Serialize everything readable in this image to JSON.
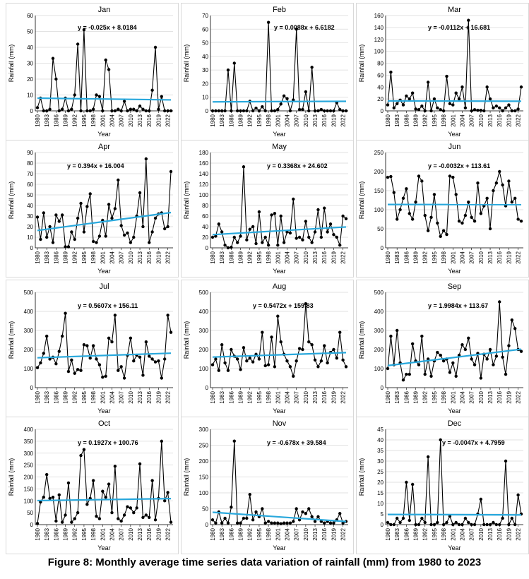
{
  "caption": "Figure 8: Monthly average time series data variation of rainfall (mm) from 1980 to 2023",
  "colors": {
    "series": "#000000",
    "trend": "#29a8dc",
    "axis": "#000000",
    "grid": "#d9d9d9"
  },
  "chart_data": [
    {
      "type": "line",
      "title": "Jan",
      "xlabel": "Year",
      "ylabel": "Rainfall (mm)",
      "ylim": [
        0,
        60
      ],
      "yticks": [
        0,
        10,
        20,
        30,
        40,
        50,
        60
      ],
      "grid": true,
      "equation": "y = -0.025x + 8.0184",
      "trend": {
        "slope": -0.025,
        "intercept": 8.0184
      },
      "x_ticks": [
        "1980",
        "1983",
        "1986",
        "1989",
        "1992",
        "1995",
        "1998",
        "2001",
        "2004",
        "2007",
        "2010",
        "2013",
        "2016",
        "2019",
        "2022"
      ],
      "values": [
        2,
        8,
        0,
        0,
        1,
        33,
        20,
        0,
        1,
        8,
        0,
        1,
        10,
        42,
        0,
        51,
        0,
        0,
        1,
        10,
        9,
        0,
        32,
        26,
        0,
        0,
        1,
        0,
        6,
        0,
        1,
        1,
        0,
        3,
        1,
        0,
        0,
        13,
        40,
        1,
        9,
        0,
        0,
        0
      ]
    },
    {
      "type": "line",
      "title": "Feb",
      "xlabel": "Year",
      "ylabel": "Rainfall (mm)",
      "ylim": [
        0,
        70
      ],
      "yticks": [
        0,
        10,
        20,
        30,
        40,
        50,
        60,
        70
      ],
      "grid": true,
      "equation": "y = 0.0088x + 6.6182",
      "trend": {
        "slope": 0.0088,
        "intercept": 6.6182
      },
      "x_ticks": [
        "1980",
        "1983",
        "1986",
        "1989",
        "1992",
        "1995",
        "1998",
        "2001",
        "2004",
        "2007",
        "2010",
        "2013",
        "2016",
        "2019",
        "2022"
      ],
      "values": [
        0,
        0,
        0,
        0,
        0,
        30,
        0,
        35,
        0,
        0,
        0,
        0,
        7,
        0,
        2,
        0,
        3,
        0,
        65,
        0,
        0,
        1,
        5,
        11,
        9,
        0,
        8,
        60,
        1,
        1,
        14,
        0,
        32,
        0,
        0,
        1,
        0,
        0,
        0,
        0,
        6,
        1,
        0,
        0
      ]
    },
    {
      "type": "line",
      "title": "Mar",
      "xlabel": "Year",
      "ylabel": "Rainfall (mm)",
      "ylim": [
        0,
        160
      ],
      "yticks": [
        0,
        20,
        40,
        60,
        80,
        100,
        120,
        140,
        160
      ],
      "grid": true,
      "equation": "y = -0.0112x + 16.681",
      "trend": {
        "slope": -0.0112,
        "intercept": 16.681
      },
      "x_ticks": [
        "1980",
        "1983",
        "1986",
        "1989",
        "1992",
        "1995",
        "1998",
        "2001",
        "2004",
        "2007",
        "2010",
        "2013",
        "2016",
        "2019",
        "2022"
      ],
      "values": [
        10,
        65,
        5,
        12,
        18,
        10,
        25,
        20,
        30,
        3,
        2,
        8,
        0,
        48,
        0,
        20,
        5,
        2,
        0,
        58,
        12,
        10,
        30,
        20,
        40,
        5,
        152,
        0,
        2,
        1,
        1,
        0,
        40,
        20,
        5,
        8,
        5,
        0,
        5,
        10,
        0,
        0,
        3,
        40
      ]
    },
    {
      "type": "line",
      "title": "Apr",
      "xlabel": "Year",
      "ylabel": "Rainfall (mm)",
      "ylim": [
        0,
        90
      ],
      "yticks": [
        0,
        10,
        20,
        30,
        40,
        50,
        60,
        70,
        80,
        90
      ],
      "grid": true,
      "equation": "y = 0.394x + 16.004",
      "trend": {
        "slope": 0.394,
        "intercept": 16.004
      },
      "x_ticks": [
        "1980",
        "1983",
        "1986",
        "1989",
        "1992",
        "1995",
        "1998",
        "2001",
        "2004",
        "2007",
        "2010",
        "2013",
        "2016",
        "2019",
        "2022"
      ],
      "values": [
        29,
        8,
        33,
        10,
        20,
        5,
        31,
        25,
        31,
        1,
        1,
        15,
        8,
        28,
        42,
        15,
        39,
        51,
        6,
        5,
        11,
        26,
        11,
        41,
        28,
        37,
        64,
        21,
        12,
        14,
        5,
        10,
        30,
        52,
        20,
        84,
        5,
        15,
        28,
        32,
        33,
        18,
        20,
        72
      ]
    },
    {
      "type": "line",
      "title": "May",
      "xlabel": "Year",
      "ylabel": "Rainfall (mm)",
      "ylim": [
        0,
        180
      ],
      "yticks": [
        0,
        20,
        40,
        60,
        80,
        100,
        120,
        140,
        160,
        180
      ],
      "grid": true,
      "equation": "y = 0.3368x + 24.602",
      "trend": {
        "slope": 0.3368,
        "intercept": 24.602
      },
      "x_ticks": [
        "1980",
        "1983",
        "1986",
        "1989",
        "1992",
        "1995",
        "1998",
        "2001",
        "2004",
        "2007",
        "2010",
        "2013",
        "2016",
        "2019",
        "2022"
      ],
      "values": [
        20,
        22,
        45,
        30,
        5,
        0,
        1,
        20,
        10,
        22,
        153,
        15,
        35,
        40,
        8,
        68,
        10,
        20,
        5,
        62,
        65,
        5,
        60,
        10,
        30,
        28,
        92,
        18,
        20,
        15,
        50,
        20,
        10,
        30,
        72,
        20,
        75,
        30,
        45,
        25,
        20,
        5,
        60,
        55
      ]
    },
    {
      "type": "line",
      "title": "Jun",
      "xlabel": "Year",
      "ylabel": "Rainfall (mm)",
      "ylim": [
        0,
        250
      ],
      "yticks": [
        0,
        50,
        100,
        150,
        200,
        250
      ],
      "grid": true,
      "equation": "y = -0.0032x + 113.61",
      "trend": {
        "slope": -0.0032,
        "intercept": 113.61
      },
      "x_ticks": [
        "1980",
        "1983",
        "1986",
        "1989",
        "1992",
        "1995",
        "1998",
        "2001",
        "2004",
        "2007",
        "2010",
        "2013",
        "2016",
        "2019",
        "2022"
      ],
      "values": [
        185,
        187,
        145,
        75,
        100,
        130,
        155,
        90,
        75,
        120,
        188,
        175,
        85,
        45,
        80,
        140,
        65,
        30,
        45,
        35,
        188,
        185,
        140,
        70,
        65,
        85,
        120,
        80,
        70,
        170,
        90,
        110,
        130,
        50,
        150,
        170,
        200,
        165,
        110,
        175,
        120,
        130,
        75,
        70
      ]
    },
    {
      "type": "line",
      "title": "Jul",
      "xlabel": "Year",
      "ylabel": "Rainfall (mm)",
      "ylim": [
        0,
        500
      ],
      "yticks": [
        0,
        100,
        200,
        300,
        400,
        500
      ],
      "grid": true,
      "equation": "y = 0.5607x + 156.11",
      "trend": {
        "slope": 0.5607,
        "intercept": 156.11
      },
      "x_ticks": [
        "1980",
        "1983",
        "1986",
        "1989",
        "1992",
        "1995",
        "1998",
        "2001",
        "2004",
        "2007",
        "2010",
        "2013",
        "2016",
        "2019",
        "2022"
      ],
      "values": [
        105,
        130,
        180,
        270,
        150,
        160,
        125,
        190,
        270,
        390,
        85,
        145,
        75,
        95,
        90,
        225,
        220,
        155,
        220,
        150,
        120,
        55,
        60,
        260,
        240,
        380,
        90,
        110,
        50,
        170,
        260,
        140,
        170,
        160,
        65,
        240,
        165,
        150,
        135,
        140,
        50,
        150,
        380,
        290
      ]
    },
    {
      "type": "line",
      "title": "Aug",
      "xlabel": "Year",
      "ylabel": "Rainfall (mm)",
      "ylim": [
        0,
        500
      ],
      "yticks": [
        0,
        100,
        200,
        300,
        400,
        500
      ],
      "grid": true,
      "equation": "y = 0.5472x + 159.83",
      "trend": {
        "slope": 0.5472,
        "intercept": 159.83
      },
      "x_ticks": [
        "1980",
        "1983",
        "1986",
        "1989",
        "1992",
        "1995",
        "1998",
        "2001",
        "2004",
        "2007",
        "2010",
        "2013",
        "2016",
        "2019",
        "2022"
      ],
      "values": [
        120,
        150,
        90,
        225,
        130,
        90,
        200,
        165,
        150,
        95,
        210,
        140,
        155,
        135,
        175,
        150,
        290,
        115,
        120,
        265,
        110,
        375,
        240,
        175,
        140,
        110,
        60,
        140,
        205,
        200,
        440,
        240,
        225,
        145,
        110,
        140,
        220,
        130,
        185,
        200,
        155,
        290,
        145,
        110
      ]
    },
    {
      "type": "line",
      "title": "Sep",
      "xlabel": "Year",
      "ylabel": "Rainfall (mm)",
      "ylim": [
        0,
        500
      ],
      "yticks": [
        0,
        100,
        200,
        300,
        400,
        500
      ],
      "grid": true,
      "equation": "y = 1.9984x + 113.67",
      "trend": {
        "slope": 1.9984,
        "intercept": 113.67
      },
      "x_ticks": [
        "1980",
        "1983",
        "1986",
        "1989",
        "1992",
        "1995",
        "1998",
        "2001",
        "2004",
        "2007",
        "2010",
        "2013",
        "2016",
        "2019",
        "2022"
      ],
      "values": [
        100,
        270,
        120,
        300,
        130,
        40,
        70,
        70,
        230,
        140,
        120,
        270,
        70,
        150,
        60,
        140,
        185,
        170,
        140,
        150,
        80,
        130,
        60,
        170,
        225,
        200,
        260,
        150,
        120,
        180,
        50,
        175,
        150,
        200,
        120,
        165,
        450,
        160,
        70,
        220,
        355,
        310,
        200,
        190
      ]
    },
    {
      "type": "line",
      "title": "Oct",
      "xlabel": "Year",
      "ylabel": "Rainfall (mm)",
      "ylim": [
        0,
        400
      ],
      "yticks": [
        0,
        50,
        100,
        150,
        200,
        250,
        300,
        350,
        400
      ],
      "grid": true,
      "equation": "y = 0.1927x + 100.76",
      "trend": {
        "slope": 0.1927,
        "intercept": 100.76
      },
      "x_ticks": [
        "1980",
        "1983",
        "1986",
        "1989",
        "1992",
        "1995",
        "1998",
        "2001",
        "2004",
        "2007",
        "2010",
        "2013",
        "2016",
        "2019",
        "2022"
      ],
      "values": [
        5,
        95,
        115,
        210,
        110,
        115,
        15,
        125,
        10,
        40,
        175,
        10,
        25,
        50,
        290,
        315,
        85,
        110,
        185,
        35,
        25,
        140,
        115,
        170,
        50,
        245,
        25,
        15,
        40,
        75,
        70,
        50,
        70,
        255,
        30,
        40,
        30,
        185,
        20,
        110,
        350,
        100,
        135,
        10
      ]
    },
    {
      "type": "line",
      "title": "Nov",
      "xlabel": "Year",
      "ylabel": "Rainfall (mm)",
      "ylim": [
        0,
        300
      ],
      "yticks": [
        0,
        50,
        100,
        150,
        200,
        250,
        300
      ],
      "grid": true,
      "equation": "y = -0.678x + 39.584",
      "trend": {
        "slope": -0.678,
        "intercept": 39.584
      },
      "x_ticks": [
        "1980",
        "1983",
        "1986",
        "1989",
        "1992",
        "1995",
        "1998",
        "2001",
        "2004",
        "2007",
        "2010",
        "2013",
        "2016",
        "2019",
        "2022"
      ],
      "values": [
        15,
        5,
        40,
        5,
        20,
        5,
        55,
        263,
        5,
        5,
        20,
        20,
        95,
        15,
        40,
        25,
        50,
        5,
        10,
        5,
        5,
        5,
        3,
        5,
        5,
        5,
        10,
        50,
        15,
        40,
        35,
        50,
        25,
        10,
        25,
        10,
        5,
        10,
        5,
        5,
        15,
        35,
        5,
        10
      ]
    },
    {
      "type": "line",
      "title": "Dec",
      "xlabel": "Year",
      "ylabel": "Rainfall (mm)",
      "ylim": [
        0,
        45
      ],
      "yticks": [
        0,
        5,
        10,
        15,
        20,
        25,
        30,
        35,
        40,
        45
      ],
      "grid": true,
      "equation": "y = -0.0047x + 4.7959",
      "trend": {
        "slope": -0.0047,
        "intercept": 4.7959
      },
      "x_ticks": [
        "1980",
        "1983",
        "1986",
        "1989",
        "1992",
        "1995",
        "1998",
        "2001",
        "2004",
        "2007",
        "2010",
        "2013",
        "2016",
        "2019",
        "2022"
      ],
      "values": [
        1,
        0,
        0,
        3,
        1,
        3,
        20,
        2,
        19,
        0,
        0,
        3,
        1,
        32,
        0,
        0,
        1,
        40,
        0,
        1,
        4,
        0,
        1,
        0,
        0,
        3,
        1,
        0,
        0,
        5,
        12,
        0,
        0,
        0,
        1,
        0,
        0,
        3,
        30,
        0,
        3,
        0,
        14,
        5
      ]
    }
  ]
}
